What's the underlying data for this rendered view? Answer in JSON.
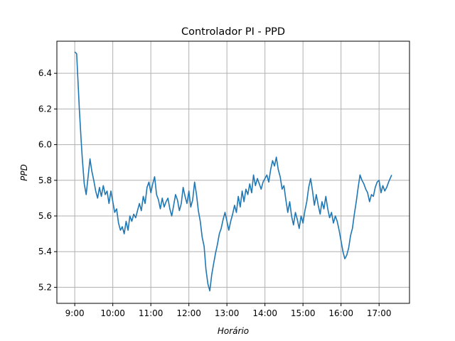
{
  "chart_data": {
    "type": "line",
    "title": "Controlador PI - PPD",
    "xlabel": "Horário",
    "ylabel": "PPD",
    "x_tick_labels": [
      "9:00",
      "10:00",
      "11:00",
      "12:00",
      "13:00",
      "14:00",
      "15:00",
      "16:00",
      "17:00"
    ],
    "x_ticks_hours": [
      9,
      10,
      11,
      12,
      13,
      14,
      15,
      16,
      17
    ],
    "y_ticks": [
      5.2,
      5.4,
      5.6,
      5.8,
      6.0,
      6.2,
      6.4
    ],
    "y_tick_labels": [
      "5.2",
      "5.4",
      "5.6",
      "5.8",
      "6.0",
      "6.2",
      "6.4"
    ],
    "xlim_hours": [
      8.53,
      17.8
    ],
    "ylim": [
      5.11,
      6.58
    ],
    "grid": true,
    "line_color": "#1f77b4",
    "series": [
      {
        "x_hours": [
          9.0,
          9.05,
          9.08,
          9.12,
          9.17,
          9.2,
          9.25,
          9.3,
          9.35,
          9.4,
          9.45,
          9.5,
          9.55,
          9.6,
          9.65,
          9.7,
          9.75,
          9.8,
          9.85,
          9.9,
          9.95,
          10.0,
          10.05,
          10.1,
          10.15,
          10.2,
          10.25,
          10.3,
          10.35,
          10.4,
          10.45,
          10.5,
          10.55,
          10.6,
          10.65,
          10.7,
          10.75,
          10.8,
          10.85,
          10.9,
          10.95,
          11.0,
          11.05,
          11.1,
          11.15,
          11.2,
          11.25,
          11.3,
          11.35,
          11.4,
          11.45,
          11.5,
          11.55,
          11.6,
          11.65,
          11.7,
          11.75,
          11.8,
          11.85,
          11.9,
          11.95,
          12.0,
          12.05,
          12.1,
          12.15,
          12.2,
          12.25,
          12.3,
          12.35,
          12.4,
          12.45,
          12.5,
          12.55,
          12.6,
          12.65,
          12.7,
          12.75,
          12.8,
          12.85,
          12.9,
          12.95,
          13.0,
          13.05,
          13.1,
          13.15,
          13.2,
          13.25,
          13.3,
          13.35,
          13.4,
          13.45,
          13.5,
          13.55,
          13.6,
          13.65,
          13.7,
          13.75,
          13.8,
          13.85,
          13.9,
          13.95,
          14.0,
          14.05,
          14.1,
          14.15,
          14.2,
          14.25,
          14.3,
          14.35,
          14.4,
          14.45,
          14.5,
          14.55,
          14.6,
          14.65,
          14.7,
          14.75,
          14.8,
          14.85,
          14.9,
          14.95,
          15.0,
          15.05,
          15.1,
          15.15,
          15.2,
          15.25,
          15.3,
          15.35,
          15.4,
          15.45,
          15.5,
          15.55,
          15.6,
          15.65,
          15.7,
          15.75,
          15.8,
          15.85,
          15.9,
          15.95,
          16.0,
          16.05,
          16.1,
          16.15,
          16.2,
          16.25,
          16.3,
          16.35,
          16.4,
          16.45,
          16.5,
          16.55,
          16.6,
          16.65,
          16.7,
          16.75,
          16.8,
          16.85,
          16.9,
          16.95,
          17.0,
          17.05,
          17.1,
          17.15,
          17.2,
          17.25,
          17.33
        ],
        "y": [
          6.52,
          6.51,
          6.38,
          6.2,
          6.02,
          5.92,
          5.78,
          5.72,
          5.82,
          5.92,
          5.85,
          5.8,
          5.74,
          5.7,
          5.76,
          5.71,
          5.77,
          5.72,
          5.74,
          5.67,
          5.74,
          5.68,
          5.62,
          5.64,
          5.56,
          5.52,
          5.54,
          5.5,
          5.57,
          5.52,
          5.6,
          5.57,
          5.61,
          5.59,
          5.63,
          5.67,
          5.63,
          5.71,
          5.67,
          5.76,
          5.79,
          5.73,
          5.78,
          5.82,
          5.72,
          5.69,
          5.64,
          5.7,
          5.65,
          5.68,
          5.7,
          5.64,
          5.6,
          5.66,
          5.72,
          5.69,
          5.63,
          5.67,
          5.76,
          5.71,
          5.67,
          5.74,
          5.65,
          5.69,
          5.79,
          5.72,
          5.63,
          5.57,
          5.48,
          5.43,
          5.3,
          5.22,
          5.18,
          5.27,
          5.33,
          5.39,
          5.44,
          5.5,
          5.53,
          5.58,
          5.62,
          5.57,
          5.52,
          5.57,
          5.61,
          5.66,
          5.62,
          5.71,
          5.65,
          5.74,
          5.68,
          5.75,
          5.72,
          5.78,
          5.73,
          5.83,
          5.77,
          5.81,
          5.78,
          5.75,
          5.79,
          5.81,
          5.83,
          5.79,
          5.86,
          5.91,
          5.88,
          5.93,
          5.86,
          5.82,
          5.75,
          5.77,
          5.69,
          5.62,
          5.68,
          5.6,
          5.55,
          5.62,
          5.58,
          5.53,
          5.6,
          5.56,
          5.63,
          5.68,
          5.76,
          5.81,
          5.74,
          5.66,
          5.72,
          5.66,
          5.61,
          5.68,
          5.64,
          5.71,
          5.64,
          5.59,
          5.62,
          5.56,
          5.6,
          5.57,
          5.52,
          5.46,
          5.4,
          5.36,
          5.38,
          5.42,
          5.49,
          5.53,
          5.61,
          5.68,
          5.76,
          5.83,
          5.8,
          5.78,
          5.75,
          5.73,
          5.68,
          5.72,
          5.71,
          5.76,
          5.79,
          5.8,
          5.73,
          5.77,
          5.74,
          5.76,
          5.79,
          5.83
        ]
      }
    ]
  }
}
